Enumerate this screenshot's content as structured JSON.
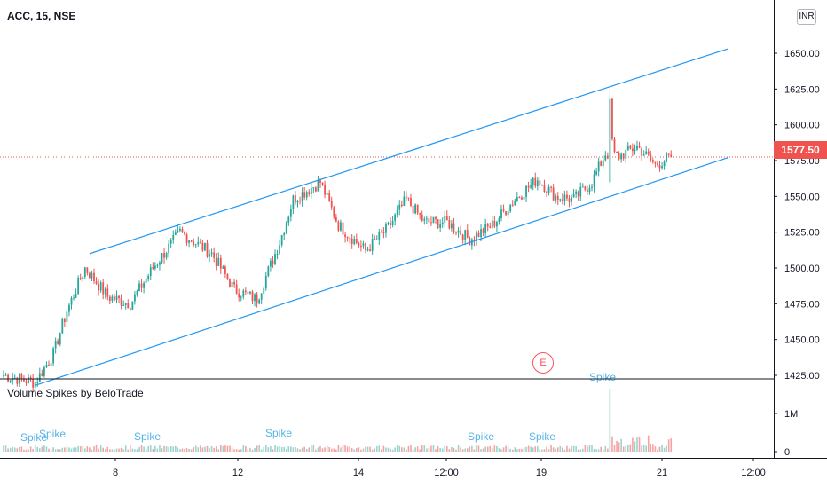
{
  "header": {
    "symbol_label": "ACC, 15, NSE",
    "currency": "INR"
  },
  "indicator": {
    "name": "Volume Spikes by BeloTrade",
    "spike_label": "Spike"
  },
  "last_price": {
    "label": "1577.50",
    "value": 1577.5
  },
  "earnings_marker": "E",
  "colors": {
    "up": "#26a69a",
    "down": "#ef5350",
    "channel": "#2196f3",
    "spike_text": "#56b4e9",
    "price_line": "#ef5350"
  },
  "chart_data": {
    "type": "candlestick",
    "price_axis": {
      "ticks": [
        "1650.00",
        "1625.00",
        "1600.00",
        "1575.00",
        "1550.00",
        "1525.00",
        "1500.00",
        "1475.00",
        "1450.00",
        "1425.00"
      ],
      "ylim": [
        1405,
        1670
      ]
    },
    "volume_axis": {
      "ticks": [
        "1M",
        "0"
      ]
    },
    "time_axis": {
      "ticks": [
        "8",
        "12",
        "14",
        "12:00",
        "19",
        "21",
        "12:00"
      ]
    },
    "anchors": [
      {
        "i": 0,
        "p": 1425
      },
      {
        "i": 14,
        "p": 1420
      },
      {
        "i": 22,
        "p": 1440
      },
      {
        "i": 28,
        "p": 1470
      },
      {
        "i": 36,
        "p": 1500
      },
      {
        "i": 46,
        "p": 1480
      },
      {
        "i": 56,
        "p": 1475
      },
      {
        "i": 66,
        "p": 1500
      },
      {
        "i": 78,
        "p": 1525
      },
      {
        "i": 92,
        "p": 1510
      },
      {
        "i": 102,
        "p": 1485
      },
      {
        "i": 112,
        "p": 1478
      },
      {
        "i": 122,
        "p": 1518
      },
      {
        "i": 128,
        "p": 1548
      },
      {
        "i": 140,
        "p": 1560
      },
      {
        "i": 148,
        "p": 1530
      },
      {
        "i": 160,
        "p": 1512
      },
      {
        "i": 170,
        "p": 1528
      },
      {
        "i": 178,
        "p": 1548
      },
      {
        "i": 186,
        "p": 1532
      },
      {
        "i": 196,
        "p": 1532
      },
      {
        "i": 206,
        "p": 1520
      },
      {
        "i": 216,
        "p": 1530
      },
      {
        "i": 226,
        "p": 1548
      },
      {
        "i": 236,
        "p": 1562
      },
      {
        "i": 244,
        "p": 1550
      },
      {
        "i": 252,
        "p": 1548
      },
      {
        "i": 260,
        "p": 1560
      },
      {
        "i": 266,
        "p": 1580
      },
      {
        "i": 272,
        "p": 1578
      },
      {
        "i": 280,
        "p": 1585
      },
      {
        "i": 288,
        "p": 1572
      },
      {
        "i": 295,
        "p": 1577.5
      }
    ],
    "spike_bar_index": 268,
    "channel": {
      "upper": [
        {
          "i": 38,
          "p": 1510
        },
        {
          "i": 320,
          "p": 1653
        }
      ],
      "lower": [
        {
          "i": 14,
          "p": 1418
        },
        {
          "i": 320,
          "p": 1577
        }
      ]
    }
  }
}
